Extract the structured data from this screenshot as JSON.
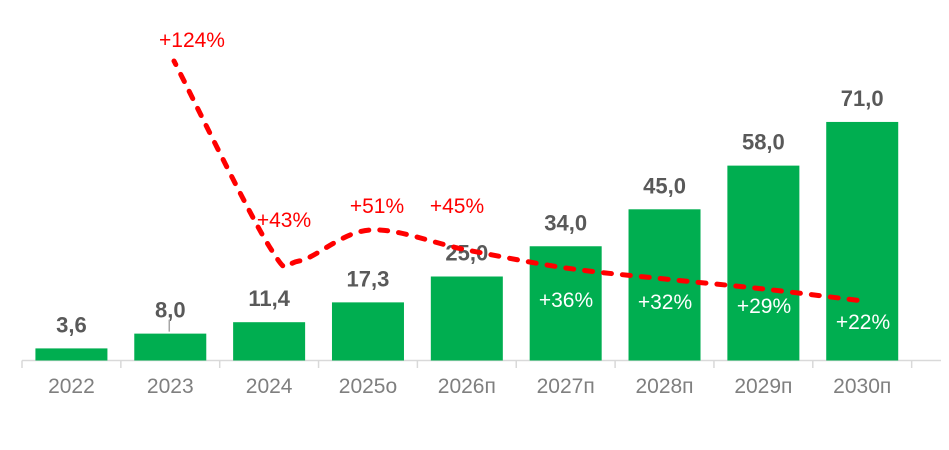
{
  "chart": {
    "background": "#FFFFFF",
    "colors": {
      "bar": "#00AE50",
      "growth_line": "#FF0000",
      "value_label": "#595959",
      "axis_label": "#7F7F7F",
      "axis_line": "#D9D9D9",
      "inbar_label": "#FFFFFF",
      "leader_line": "#A6A6A6"
    }
  },
  "chart_data": {
    "type": "combo_bar_line",
    "title": "",
    "xlabel": "",
    "ylabel": "",
    "ylim": [
      0,
      80
    ],
    "grid": false,
    "legend": "none",
    "categories": [
      "2022",
      "2023",
      "2024",
      "2025о",
      "2026п",
      "2027п",
      "2028п",
      "2029п",
      "2030п"
    ],
    "series": [
      {
        "name": "bars",
        "type": "bar",
        "values": [
          3.6,
          8.0,
          11.4,
          17.3,
          25.0,
          34.0,
          45.0,
          58.0,
          71.0
        ],
        "labels": [
          "3,6",
          "8,0",
          "11,4",
          "17,3",
          "25,0",
          "34,0",
          "45,0",
          "58,0",
          "71,0"
        ],
        "color": "#00AE50"
      },
      {
        "name": "growth-line",
        "type": "line",
        "dashed": true,
        "values": [
          null,
          124,
          43,
          51,
          45,
          36,
          32,
          29,
          22
        ],
        "labels": [
          "",
          "+124%",
          "+43%",
          "+51%",
          "+45%",
          "+36%",
          "+32%",
          "+29%",
          "+22%"
        ],
        "color": "#FF0000"
      }
    ]
  }
}
